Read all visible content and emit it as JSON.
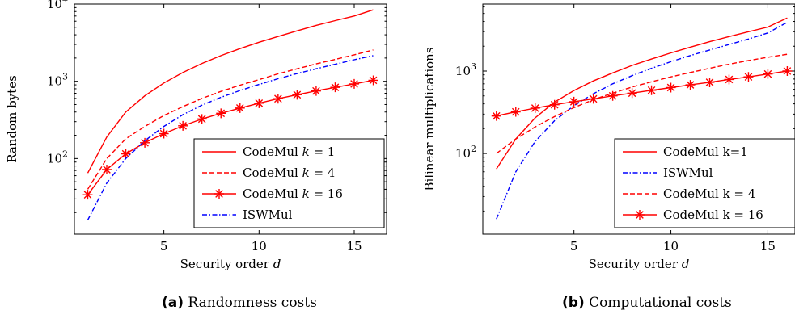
{
  "chart_data": [
    {
      "type": "line",
      "panel": "a",
      "caption_tag": "(a)",
      "caption_text": "Randomness costs",
      "xlabel": "Security order",
      "xlabel_var": "d",
      "ylabel": "Random bytes",
      "yscale": "log",
      "xlim": [
        0.3,
        16.7
      ],
      "ylim": [
        10.5,
        10000
      ],
      "xticks": [
        5,
        10,
        15
      ],
      "yticks": [
        {
          "value": 100,
          "base": "10",
          "exp": "2"
        },
        {
          "value": 1000,
          "base": "10",
          "exp": "3"
        },
        {
          "value": 10000,
          "base": "10",
          "exp": "4"
        }
      ],
      "legend_position": "bottom-right",
      "series": [
        {
          "label_main": "CodeMul ",
          "label_var": "k",
          "label_rest": " = 1",
          "color": "#ff0000",
          "dash": "solid",
          "marker": "none",
          "x": [
            1,
            2,
            3,
            4,
            5,
            6,
            7,
            8,
            9,
            10,
            11,
            12,
            13,
            14,
            15,
            16
          ],
          "y": [
            65,
            190,
            400,
            650,
            950,
            1300,
            1700,
            2150,
            2650,
            3200,
            3800,
            4500,
            5300,
            6100,
            7000,
            8400
          ]
        },
        {
          "label_main": "CodeMul ",
          "label_var": "k",
          "label_rest": " = 4",
          "color": "#ff0000",
          "dash": "dashed",
          "marker": "none",
          "x": [
            1,
            2,
            3,
            4,
            5,
            6,
            7,
            8,
            9,
            10,
            11,
            12,
            13,
            14,
            15,
            16
          ],
          "y": [
            40,
            100,
            180,
            260,
            360,
            470,
            600,
            740,
            890,
            1050,
            1250,
            1450,
            1680,
            1920,
            2200,
            2550
          ]
        },
        {
          "label_main": "CodeMul ",
          "label_var": "k",
          "label_rest": " = 16",
          "color": "#ff0000",
          "dash": "solid",
          "marker": "asterisk",
          "x": [
            1,
            2,
            3,
            4,
            5,
            6,
            7,
            8,
            9,
            10,
            11,
            12,
            13,
            14,
            15,
            16
          ],
          "y": [
            34,
            72,
            115,
            160,
            210,
            265,
            325,
            385,
            450,
            520,
            595,
            670,
            750,
            835,
            925,
            1030
          ]
        },
        {
          "label_main": "ISWMul",
          "label_var": "",
          "label_rest": "",
          "color": "#0000ff",
          "dash": "dashdot",
          "marker": "none",
          "x": [
            1,
            2,
            3,
            4,
            5,
            6,
            7,
            8,
            9,
            10,
            11,
            12,
            13,
            14,
            15,
            16
          ],
          "y": [
            16,
            48,
            100,
            170,
            260,
            370,
            490,
            620,
            760,
            910,
            1080,
            1260,
            1450,
            1660,
            1900,
            2150
          ]
        }
      ]
    },
    {
      "type": "line",
      "panel": "b",
      "caption_tag": "(b)",
      "caption_text": "Computational costs",
      "xlabel": "Security order",
      "xlabel_var": "d",
      "ylabel": "Bilinear multiplications",
      "yscale": "log",
      "xlim": [
        0.3,
        16.4
      ],
      "ylim": [
        10.5,
        6500
      ],
      "xticks": [
        5,
        10,
        15
      ],
      "yticks": [
        {
          "value": 100,
          "base": "10",
          "exp": "2"
        },
        {
          "value": 1000,
          "base": "10",
          "exp": "3"
        }
      ],
      "legend_position": "bottom-right",
      "series": [
        {
          "label_main": "CodeMul k=1",
          "label_var": "",
          "label_rest": "",
          "color": "#ff0000",
          "dash": "solid",
          "marker": "none",
          "x": [
            1,
            2,
            3,
            4,
            5,
            6,
            7,
            8,
            9,
            10,
            11,
            12,
            13,
            14,
            15,
            16
          ],
          "y": [
            65,
            150,
            270,
            420,
            580,
            760,
            950,
            1170,
            1400,
            1660,
            1950,
            2270,
            2620,
            3000,
            3420,
            4400
          ]
        },
        {
          "label_main": "ISWMul",
          "label_var": "",
          "label_rest": "",
          "color": "#0000ff",
          "dash": "dashdot",
          "marker": "none",
          "x": [
            1,
            2,
            3,
            4,
            5,
            6,
            7,
            8,
            9,
            10,
            11,
            12,
            13,
            14,
            15,
            16
          ],
          "y": [
            16,
            60,
            140,
            250,
            380,
            530,
            700,
            880,
            1080,
            1300,
            1540,
            1800,
            2100,
            2450,
            2900,
            3900
          ]
        },
        {
          "label_main": "CodeMul k = 4",
          "label_var": "",
          "label_rest": "",
          "color": "#ff0000",
          "dash": "dashed",
          "marker": "none",
          "x": [
            1,
            2,
            3,
            4,
            5,
            6,
            7,
            8,
            9,
            10,
            11,
            12,
            13,
            14,
            15,
            16
          ],
          "y": [
            100,
            150,
            210,
            280,
            360,
            450,
            540,
            640,
            740,
            850,
            960,
            1080,
            1210,
            1340,
            1470,
            1600
          ]
        },
        {
          "label_main": "CodeMul k = 16",
          "label_var": "",
          "label_rest": "",
          "color": "#ff0000",
          "dash": "solid",
          "marker": "asterisk",
          "x": [
            1,
            2,
            3,
            4,
            5,
            6,
            7,
            8,
            9,
            10,
            11,
            12,
            13,
            14,
            15,
            16
          ],
          "y": [
            285,
            320,
            355,
            390,
            425,
            460,
            500,
            540,
            585,
            630,
            680,
            730,
            790,
            850,
            920,
            1000
          ]
        }
      ]
    }
  ]
}
